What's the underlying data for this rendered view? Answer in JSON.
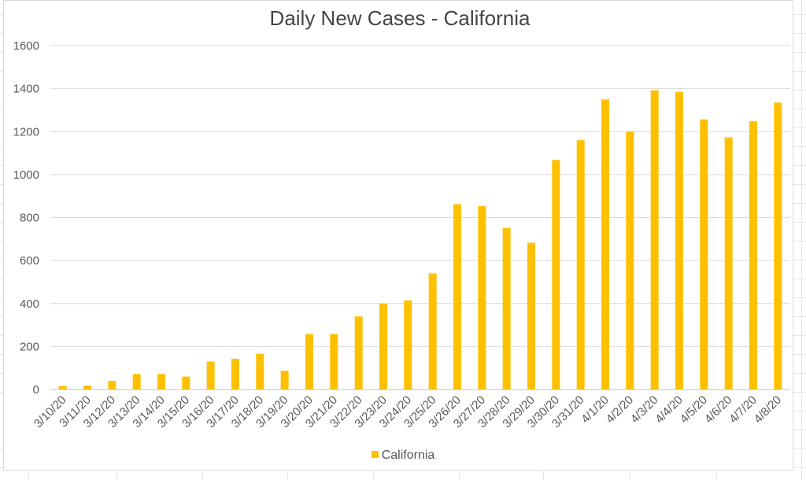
{
  "chart_data": {
    "type": "bar",
    "title": "Daily New Cases - California",
    "xlabel": "",
    "ylabel": "",
    "ylim": [
      0,
      1600
    ],
    "yticks": [
      0,
      200,
      400,
      600,
      800,
      1000,
      1200,
      1400,
      1600
    ],
    "grid": true,
    "legend_position": "bottom",
    "color": "#ffc000",
    "categories": [
      "3/10/20",
      "3/11/20",
      "3/12/20",
      "3/13/20",
      "3/14/20",
      "3/15/20",
      "3/16/20",
      "3/17/20",
      "3/18/20",
      "3/19/20",
      "3/20/20",
      "3/21/20",
      "3/22/20",
      "3/23/20",
      "3/24/20",
      "3/25/20",
      "3/26/20",
      "3/27/20",
      "3/28/20",
      "3/29/20",
      "3/30/20",
      "3/31/20",
      "4/1/20",
      "4/2/20",
      "4/3/20",
      "4/4/20",
      "4/5/20",
      "4/6/20",
      "4/7/20",
      "4/8/20"
    ],
    "series": [
      {
        "name": "California",
        "values": [
          17,
          18,
          40,
          72,
          72,
          60,
          130,
          143,
          166,
          87,
          258,
          258,
          340,
          400,
          415,
          540,
          862,
          853,
          752,
          683,
          1068,
          1160,
          1350,
          1200,
          1392,
          1385,
          1257,
          1173,
          1248,
          1335
        ]
      }
    ]
  }
}
